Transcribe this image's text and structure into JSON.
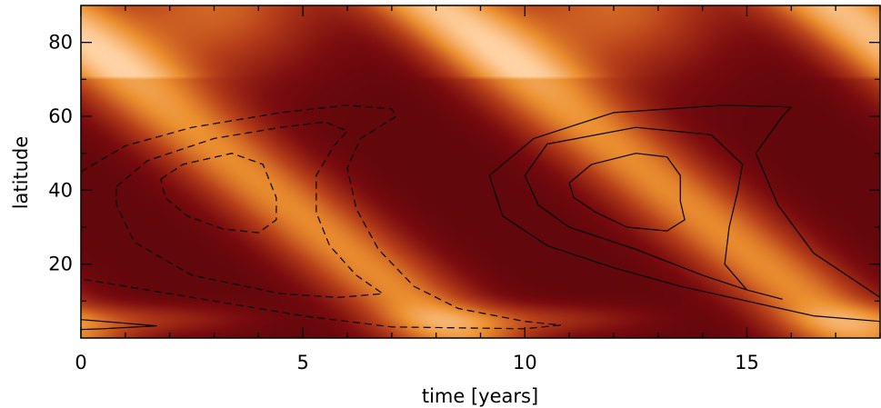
{
  "chart_data": {
    "type": "heatmap",
    "title": "",
    "xlabel": "time [years]",
    "ylabel": "latitude",
    "xlim": [
      0,
      18
    ],
    "ylim": [
      0,
      90
    ],
    "x_ticks": [
      0,
      5,
      10,
      15
    ],
    "x_tick_labels": [
      "0",
      "5",
      "10",
      "15"
    ],
    "y_ticks": [
      20,
      40,
      60,
      80
    ],
    "y_tick_labels": [
      "20",
      "40",
      "60",
      "80"
    ],
    "colormap": [
      "#3d0005",
      "#7a0b0f",
      "#b8401a",
      "#ec9030",
      "#ffd0a0",
      "#fff2e8"
    ],
    "description_of_field": "wavy bands of maxima migrating from the pole toward the equator; high-latitude maxima near times 3 and 12 years",
    "contours": [
      {
        "style": "dashed",
        "level": "outer",
        "points": [
          [
            0,
            45
          ],
          [
            1,
            52
          ],
          [
            2.5,
            57
          ],
          [
            4.5,
            61
          ],
          [
            6,
            63
          ],
          [
            7,
            62
          ],
          [
            7.1,
            60
          ],
          [
            6.3,
            54
          ],
          [
            6,
            46
          ],
          [
            6.2,
            35
          ],
          [
            6.7,
            24
          ],
          [
            7.5,
            14
          ],
          [
            8.5,
            8
          ],
          [
            10,
            4.5
          ],
          [
            10.8,
            3.5
          ],
          [
            10,
            2.5
          ],
          [
            7,
            3
          ],
          [
            5,
            6
          ],
          [
            3,
            10
          ],
          [
            1,
            14
          ],
          [
            0,
            16
          ]
        ]
      },
      {
        "style": "dashed",
        "level": "middle",
        "points": [
          [
            0.8,
            41
          ],
          [
            1.5,
            48
          ],
          [
            3,
            54
          ],
          [
            4.5,
            57
          ],
          [
            5.5,
            58.5
          ],
          [
            6,
            56
          ],
          [
            5.7,
            52
          ],
          [
            5.3,
            44
          ],
          [
            5.3,
            34
          ],
          [
            5.6,
            25
          ],
          [
            6.2,
            17
          ],
          [
            6.8,
            12
          ],
          [
            5.8,
            11
          ],
          [
            4.5,
            12
          ],
          [
            2.5,
            17
          ],
          [
            1.2,
            26
          ],
          [
            0.8,
            36
          ],
          [
            0.8,
            41
          ]
        ]
      },
      {
        "style": "dashed",
        "level": "inner",
        "points": [
          [
            1.8,
            43
          ],
          [
            2.3,
            47
          ],
          [
            3.4,
            50
          ],
          [
            4.1,
            47
          ],
          [
            4.4,
            38
          ],
          [
            4.4,
            32
          ],
          [
            4,
            28.5
          ],
          [
            3.2,
            29.5
          ],
          [
            2.4,
            33
          ],
          [
            1.9,
            38
          ],
          [
            1.8,
            43
          ]
        ]
      },
      {
        "style": "solid",
        "level": "outer",
        "points": [
          [
            18,
            11
          ],
          [
            16.5,
            23
          ],
          [
            15.7,
            36
          ],
          [
            15.2,
            50
          ],
          [
            15.8,
            60
          ],
          [
            16,
            62.5
          ],
          [
            14.5,
            63
          ],
          [
            12,
            61
          ],
          [
            10.2,
            54
          ],
          [
            9.2,
            44
          ],
          [
            9.5,
            33
          ],
          [
            10.5,
            25
          ],
          [
            12,
            19
          ],
          [
            13.5,
            14
          ],
          [
            15,
            10
          ],
          [
            16.5,
            6
          ],
          [
            18,
            4.5
          ]
        ]
      },
      {
        "style": "solid",
        "level": "middle",
        "points": [
          [
            15.8,
            10.5
          ],
          [
            15,
            13
          ],
          [
            14.5,
            20
          ],
          [
            14.6,
            30
          ],
          [
            14.8,
            40
          ],
          [
            14.9,
            47
          ],
          [
            14.2,
            55
          ],
          [
            12.5,
            57
          ],
          [
            10.5,
            52.5
          ],
          [
            10,
            44
          ],
          [
            10.3,
            36
          ],
          [
            11,
            30
          ],
          [
            12.5,
            24
          ],
          [
            14,
            17
          ],
          [
            15,
            13
          ],
          [
            15.8,
            10.5
          ]
        ]
      },
      {
        "style": "solid",
        "level": "inner",
        "points": [
          [
            11,
            42
          ],
          [
            11.5,
            47
          ],
          [
            12.5,
            50
          ],
          [
            13.2,
            49
          ],
          [
            13.5,
            44
          ],
          [
            13.5,
            37
          ],
          [
            13.6,
            32
          ],
          [
            13.2,
            29
          ],
          [
            12.3,
            30
          ],
          [
            11.6,
            34
          ],
          [
            11.1,
            38
          ],
          [
            11,
            42
          ]
        ]
      },
      {
        "style": "solid",
        "level": "corner",
        "points": [
          [
            0,
            5
          ],
          [
            1,
            4
          ],
          [
            1.7,
            3.3
          ],
          [
            0.5,
            2.5
          ],
          [
            0,
            2.3
          ]
        ]
      }
    ]
  }
}
